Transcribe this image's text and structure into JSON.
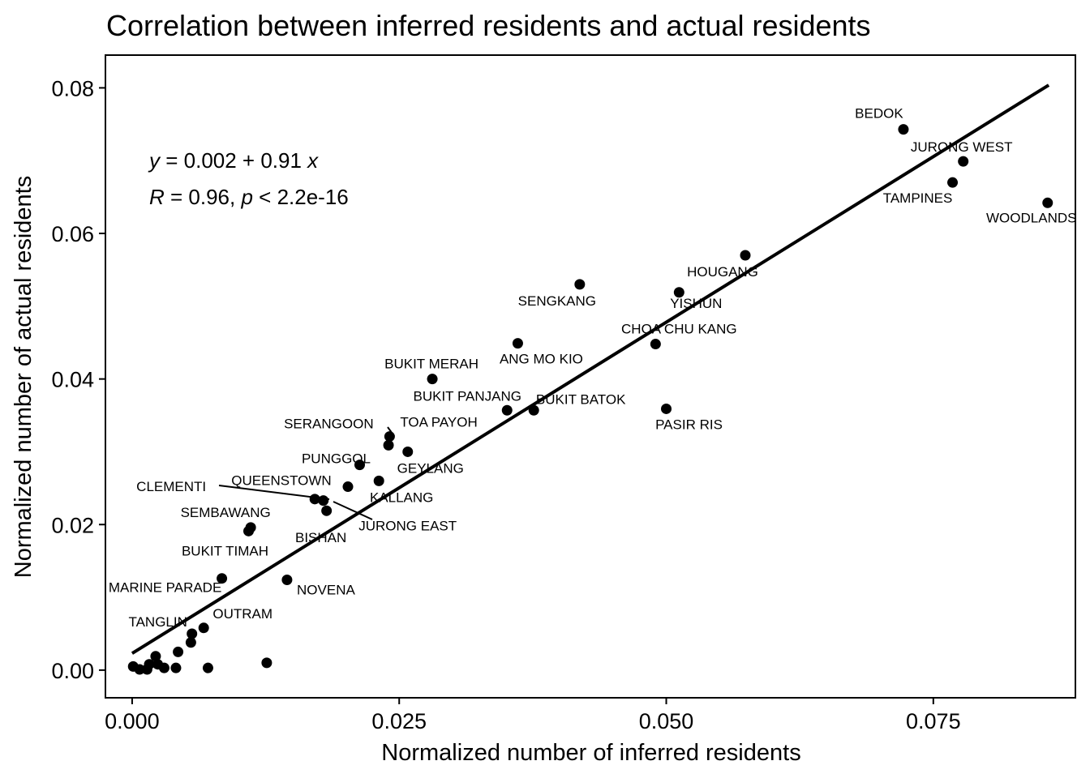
{
  "chart_data": {
    "type": "scatter",
    "title": "Correlation between inferred residents and actual residents",
    "xlabel": "Normalized number of inferred residents",
    "ylabel": "Normalized number of actual residents",
    "xlim": [
      -0.0025,
      0.0883
    ],
    "ylim": [
      -0.0038,
      0.0845
    ],
    "xticks": [
      0.0,
      0.025,
      0.05,
      0.075
    ],
    "xtick_labels": [
      "0.000",
      "0.025",
      "0.050",
      "0.075"
    ],
    "yticks": [
      0.0,
      0.02,
      0.04,
      0.06,
      0.08
    ],
    "ytick_labels": [
      "0.00",
      "0.02",
      "0.04",
      "0.06",
      "0.08"
    ],
    "grid": false,
    "legend": "none",
    "marker_color": "#000000",
    "regression": {
      "equation_y": "y",
      "equation_rest": " = 0.002 + 0.91 ",
      "equation_x": "x",
      "stat_R": "R",
      "stat_rest": " = 0.96, ",
      "stat_p": "p",
      "stat_p_rest": " < 2.2e-16",
      "intercept": 0.0023,
      "slope": 0.91,
      "x_range": [
        0.0,
        0.0858
      ]
    },
    "points": [
      {
        "label": "BEDOK",
        "x": 0.0722,
        "y": 0.0743
      },
      {
        "label": "JURONG WEST",
        "x": 0.0778,
        "y": 0.0699
      },
      {
        "label": "TAMPINES",
        "x": 0.0768,
        "y": 0.067
      },
      {
        "label": "WOODLANDS",
        "x": 0.0857,
        "y": 0.0642
      },
      {
        "label": "HOUGANG",
        "x": 0.0574,
        "y": 0.057
      },
      {
        "label": "SENGKANG",
        "x": 0.0419,
        "y": 0.053
      },
      {
        "label": "YISHUN",
        "x": 0.0512,
        "y": 0.0519
      },
      {
        "label": "CHOA CHU KANG",
        "x": 0.049,
        "y": 0.0448
      },
      {
        "label": "ANG MO KIO",
        "x": 0.0361,
        "y": 0.0449
      },
      {
        "label": "BUKIT MERAH",
        "x": 0.0281,
        "y": 0.04
      },
      {
        "label": "BUKIT PANJANG",
        "x": 0.0351,
        "y": 0.0357
      },
      {
        "label": "BUKIT BATOK",
        "x": 0.0376,
        "y": 0.0357
      },
      {
        "label": "PASIR RIS",
        "x": 0.05,
        "y": 0.0359
      },
      {
        "label": "SERANGOON",
        "x": 0.0241,
        "y": 0.0321
      },
      {
        "label": "TOA PAYOH",
        "x": 0.024,
        "y": 0.0309
      },
      {
        "label": "GEYLANG",
        "x": 0.0258,
        "y": 0.03
      },
      {
        "label": "PUNGGOL",
        "x": 0.0213,
        "y": 0.0282
      },
      {
        "label": "KALLANG",
        "x": 0.0231,
        "y": 0.026
      },
      {
        "label": "QUEENSTOWN",
        "x": 0.0202,
        "y": 0.0252
      },
      {
        "label": "CLEMENTI",
        "x": 0.0171,
        "y": 0.0235
      },
      {
        "label": "JURONG EAST",
        "x": 0.0179,
        "y": 0.0233
      },
      {
        "label": "BISHAN",
        "x": 0.0182,
        "y": 0.0219
      },
      {
        "label": "SEMBAWANG",
        "x": 0.0111,
        "y": 0.0196
      },
      {
        "label": "BUKIT TIMAH",
        "x": 0.0109,
        "y": 0.0191
      },
      {
        "label": "MARINE PARADE",
        "x": 0.0084,
        "y": 0.0126
      },
      {
        "label": "NOVENA",
        "x": 0.0145,
        "y": 0.0124
      },
      {
        "label": "OUTRAM",
        "x": 0.0067,
        "y": 0.0058
      },
      {
        "label": "TANGLIN",
        "x": 0.0056,
        "y": 0.005
      },
      {
        "label": "",
        "x": 0.0055,
        "y": 0.0038
      },
      {
        "label": "",
        "x": 0.0043,
        "y": 0.0025
      },
      {
        "label": "",
        "x": 0.0022,
        "y": 0.0019
      },
      {
        "label": "",
        "x": 0.0126,
        "y": 0.001
      },
      {
        "label": "",
        "x": 0.0071,
        "y": 0.0003
      },
      {
        "label": "",
        "x": 0.0041,
        "y": 0.0003
      },
      {
        "label": "",
        "x": 0.003,
        "y": 0.0003
      },
      {
        "label": "",
        "x": 0.0024,
        "y": 0.0008
      },
      {
        "label": "",
        "x": 0.0016,
        "y": 0.0008
      },
      {
        "label": "",
        "x": 0.0014,
        "y": 0.0001
      },
      {
        "label": "",
        "x": 0.0007,
        "y": 0.0001
      },
      {
        "label": "",
        "x": 0.0001,
        "y": 0.0005
      }
    ]
  }
}
